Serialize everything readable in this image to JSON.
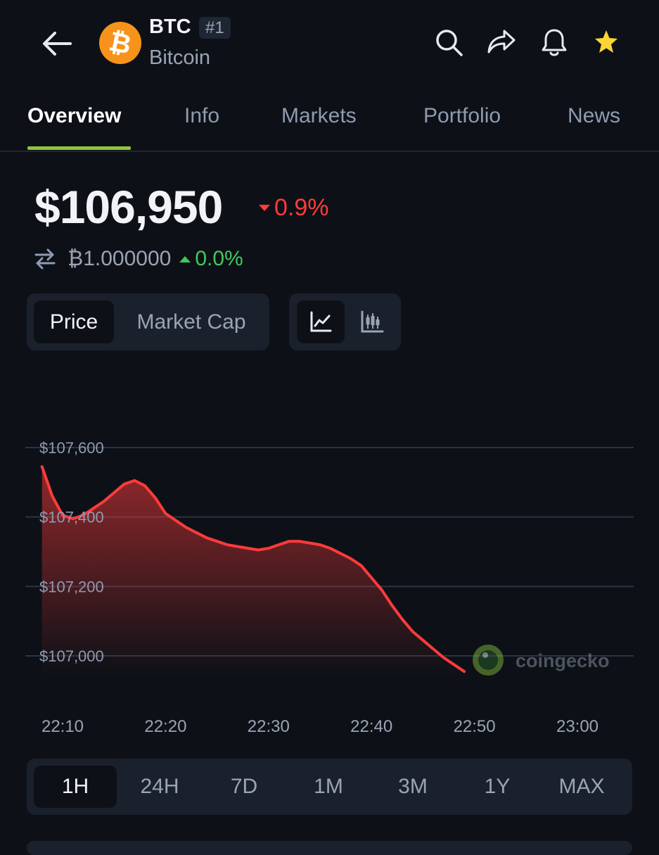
{
  "header": {
    "symbol": "BTC",
    "rank": "#1",
    "name": "Bitcoin",
    "logo_glyph": "₿",
    "icons": [
      "back-arrow-icon",
      "search-icon",
      "share-icon",
      "bell-icon",
      "star-icon"
    ],
    "favorite": true
  },
  "tabs": [
    {
      "label": "Overview",
      "active": true
    },
    {
      "label": "Info",
      "active": false
    },
    {
      "label": "Markets",
      "active": false
    },
    {
      "label": "Portfolio",
      "active": false
    },
    {
      "label": "News",
      "active": false
    }
  ],
  "price": {
    "value": "$106,950",
    "change": "0.9%",
    "change_direction": "down",
    "btc_value": "₿1.000000",
    "btc_change": "0.0%",
    "btc_change_direction": "up"
  },
  "toggles": {
    "metric": [
      {
        "label": "Price",
        "active": true
      },
      {
        "label": "Market Cap",
        "active": false
      }
    ],
    "chart_type": [
      {
        "icon": "line-chart-icon",
        "active": true
      },
      {
        "icon": "candlestick-chart-icon",
        "active": false
      }
    ]
  },
  "chart_data": {
    "type": "area",
    "title": "",
    "xlabel": "",
    "ylabel": "",
    "x_ticks": [
      "22:10",
      "22:20",
      "22:30",
      "22:40",
      "22:50",
      "23:00"
    ],
    "y_ticks": [
      "$107,600",
      "$107,400",
      "$107,200",
      "$107,000"
    ],
    "ylim": [
      107000,
      107600
    ],
    "grid": true,
    "watermark": "coingecko",
    "series": [
      {
        "color": "#ff3b3b",
        "points": [
          [
            "22:08",
            107545
          ],
          [
            "22:09",
            107460
          ],
          [
            "22:10",
            107405
          ],
          [
            "22:11",
            107395
          ],
          [
            "22:12",
            107405
          ],
          [
            "22:13",
            107425
          ],
          [
            "22:14",
            107445
          ],
          [
            "22:15",
            107470
          ],
          [
            "22:16",
            107495
          ],
          [
            "22:17",
            107505
          ],
          [
            "22:18",
            107490
          ],
          [
            "22:19",
            107455
          ],
          [
            "22:20",
            107410
          ],
          [
            "22:21",
            107390
          ],
          [
            "22:22",
            107370
          ],
          [
            "22:23",
            107355
          ],
          [
            "22:24",
            107340
          ],
          [
            "22:25",
            107330
          ],
          [
            "22:26",
            107320
          ],
          [
            "22:27",
            107315
          ],
          [
            "22:28",
            107310
          ],
          [
            "22:29",
            107305
          ],
          [
            "22:30",
            107310
          ],
          [
            "22:31",
            107320
          ],
          [
            "22:32",
            107330
          ],
          [
            "22:33",
            107330
          ],
          [
            "22:34",
            107325
          ],
          [
            "22:35",
            107320
          ],
          [
            "22:36",
            107310
          ],
          [
            "22:37",
            107295
          ],
          [
            "22:38",
            107280
          ],
          [
            "22:39",
            107260
          ],
          [
            "22:40",
            107225
          ],
          [
            "22:41",
            107190
          ],
          [
            "22:42",
            107145
          ],
          [
            "22:43",
            107105
          ],
          [
            "22:44",
            107070
          ],
          [
            "22:45",
            107045
          ],
          [
            "22:46",
            107020
          ],
          [
            "22:47",
            106995
          ],
          [
            "22:48",
            106975
          ],
          [
            "22:49",
            106955
          ]
        ]
      }
    ]
  },
  "ranges": [
    {
      "label": "1H",
      "active": true
    },
    {
      "label": "24H",
      "active": false
    },
    {
      "label": "7D",
      "active": false
    },
    {
      "label": "1M",
      "active": false
    },
    {
      "label": "3M",
      "active": false
    },
    {
      "label": "1Y",
      "active": false
    },
    {
      "label": "MAX",
      "active": false
    }
  ],
  "colors": {
    "background": "#0d1117",
    "accent": "#8dc63f",
    "negative": "#ff3b3b",
    "positive": "#3fc95b",
    "favorite": "#fcd535",
    "btc": "#f7931a"
  }
}
